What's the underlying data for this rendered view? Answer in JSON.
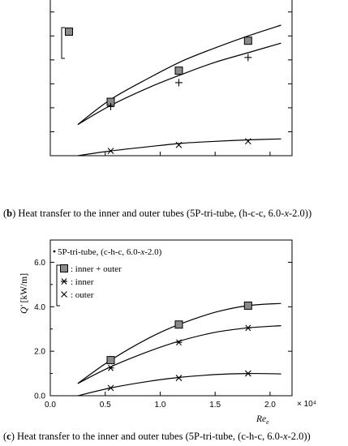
{
  "captions": {
    "b": {
      "letter": "b",
      "text": " Heat transfer to the inner and outer tubes (5P-tri-tube, (h-c-c, 6.0-",
      "var": "x",
      "tail": "-2.0))"
    },
    "c": {
      "letter": "c",
      "text": " Heat transfer to the inner and outer tubes (5P-tri-tube, (c-h-c, 6.0-",
      "var": "x",
      "tail": "-2.0))"
    }
  },
  "chart_data": [
    {
      "type": "scatter",
      "id": "b",
      "title": "",
      "xlabel": "",
      "ylabel": "",
      "xlim": [
        0,
        2.2
      ],
      "ylim": [
        0,
        6.5
      ],
      "legend": {
        "placement": "top-left",
        "entries": []
      },
      "series": [
        {
          "marker": "square",
          "x": [
            0.55,
            1.17,
            1.8
          ],
          "y": [
            2.25,
            3.55,
            4.8
          ],
          "fit": [
            [
              0.25,
              1.3
            ],
            [
              0.55,
              2.35
            ],
            [
              0.9,
              3.25
            ],
            [
              1.2,
              3.95
            ],
            [
              1.5,
              4.5
            ],
            [
              1.8,
              5.0
            ],
            [
              2.1,
              5.45
            ]
          ]
        },
        {
          "marker": "plus",
          "x": [
            0.55,
            1.17,
            1.8
          ],
          "y": [
            2.05,
            3.05,
            4.1
          ],
          "fit": [
            [
              0.25,
              1.3
            ],
            [
              0.55,
              2.1
            ],
            [
              0.9,
              2.85
            ],
            [
              1.2,
              3.4
            ],
            [
              1.5,
              3.9
            ],
            [
              1.8,
              4.3
            ],
            [
              2.1,
              4.7
            ]
          ]
        },
        {
          "marker": "x",
          "x": [
            0.55,
            1.17,
            1.8
          ],
          "y": [
            0.2,
            0.45,
            0.6
          ],
          "fit": [
            [
              0.25,
              0.0
            ],
            [
              0.55,
              0.2
            ],
            [
              0.9,
              0.38
            ],
            [
              1.2,
              0.52
            ],
            [
              1.5,
              0.6
            ],
            [
              1.8,
              0.66
            ],
            [
              2.1,
              0.7
            ]
          ]
        }
      ]
    },
    {
      "type": "scatter",
      "id": "c",
      "title": "5P-tri-tube, (c-h-c, 6.0-x-2.0)",
      "ylabel": "Q' [kW/m]",
      "xlabel": "Re_e",
      "x_multiplier": "× 10⁴",
      "xlim": [
        0,
        2.2
      ],
      "ylim": [
        0,
        7.0
      ],
      "xticks": [
        "0.0",
        "0.5",
        "1.0",
        "1.5",
        "2.0"
      ],
      "yticks": [
        "0.0",
        "2.0",
        "4.0",
        "6.0"
      ],
      "legend": {
        "placement": "top-left",
        "entries": [
          ": inner + outer",
          ": inner",
          ": outer"
        ]
      },
      "series": [
        {
          "name": "inner + outer",
          "marker": "square",
          "x": [
            0.55,
            1.17,
            1.8
          ],
          "y": [
            1.6,
            3.2,
            4.05
          ],
          "fit": [
            [
              0.25,
              0.55
            ],
            [
              0.55,
              1.6
            ],
            [
              0.9,
              2.6
            ],
            [
              1.17,
              3.2
            ],
            [
              1.5,
              3.75
            ],
            [
              1.8,
              4.05
            ],
            [
              2.1,
              4.15
            ]
          ]
        },
        {
          "name": "inner",
          "marker": "star",
          "x": [
            0.55,
            1.17,
            1.8
          ],
          "y": [
            1.25,
            2.4,
            3.05
          ],
          "fit": [
            [
              0.25,
              0.55
            ],
            [
              0.55,
              1.3
            ],
            [
              0.9,
              2.0
            ],
            [
              1.17,
              2.45
            ],
            [
              1.5,
              2.85
            ],
            [
              1.8,
              3.05
            ],
            [
              2.1,
              3.15
            ]
          ]
        },
        {
          "name": "outer",
          "marker": "x",
          "x": [
            0.55,
            1.17,
            1.8
          ],
          "y": [
            0.35,
            0.8,
            1.0
          ],
          "fit": [
            [
              0.25,
              0.0
            ],
            [
              0.55,
              0.35
            ],
            [
              0.9,
              0.65
            ],
            [
              1.17,
              0.82
            ],
            [
              1.5,
              0.95
            ],
            [
              1.8,
              1.0
            ],
            [
              2.1,
              0.98
            ]
          ]
        }
      ]
    }
  ]
}
